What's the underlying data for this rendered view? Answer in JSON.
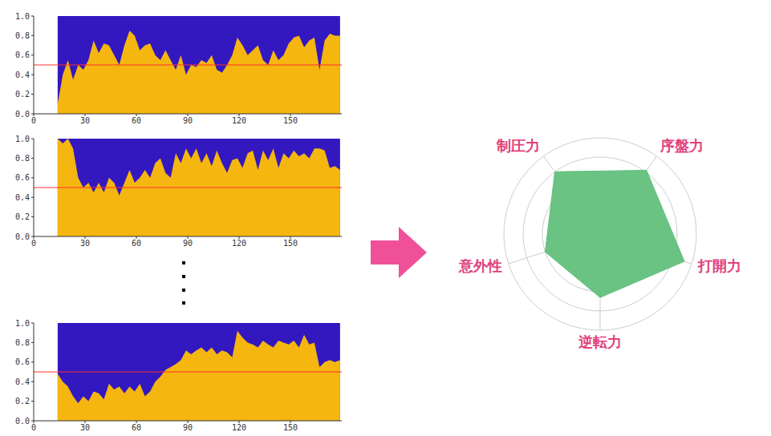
{
  "chart_data": [
    {
      "type": "area",
      "x": [
        14,
        17,
        20,
        23,
        26,
        29,
        32,
        35,
        38,
        41,
        44,
        47,
        50,
        53,
        56,
        59,
        62,
        65,
        68,
        71,
        74,
        77,
        80,
        83,
        86,
        89,
        92,
        95,
        98,
        101,
        104,
        107,
        110,
        113,
        116,
        119,
        122,
        125,
        128,
        131,
        134,
        137,
        140,
        143,
        146,
        149,
        152,
        155,
        158,
        161,
        164,
        167,
        170,
        173,
        176,
        179
      ],
      "values": [
        0.1,
        0.4,
        0.55,
        0.35,
        0.5,
        0.45,
        0.55,
        0.75,
        0.62,
        0.72,
        0.7,
        0.6,
        0.5,
        0.7,
        0.85,
        0.8,
        0.65,
        0.7,
        0.72,
        0.6,
        0.55,
        0.65,
        0.55,
        0.45,
        0.6,
        0.4,
        0.5,
        0.48,
        0.55,
        0.52,
        0.6,
        0.45,
        0.42,
        0.5,
        0.6,
        0.78,
        0.7,
        0.6,
        0.65,
        0.7,
        0.55,
        0.5,
        0.65,
        0.55,
        0.6,
        0.72,
        0.78,
        0.8,
        0.68,
        0.75,
        0.78,
        0.45,
        0.75,
        0.82,
        0.8,
        0.8
      ],
      "color": "#f5b60f",
      "reference_line": 0.5,
      "xlim": [
        0,
        180
      ],
      "xticks": [
        0,
        30,
        60,
        90,
        120,
        150
      ],
      "ylim": [
        0,
        1
      ],
      "yticks": [
        {
          "value": 0,
          "label": "0.0"
        },
        0.2,
        0.4,
        0.6,
        0.8,
        {
          "value": 1,
          "label": "1.0"
        }
      ]
    },
    {
      "type": "area",
      "x": [
        14,
        17,
        20,
        23,
        26,
        29,
        32,
        35,
        38,
        41,
        44,
        47,
        50,
        53,
        56,
        59,
        62,
        65,
        68,
        71,
        74,
        77,
        80,
        83,
        86,
        89,
        92,
        95,
        98,
        101,
        104,
        107,
        110,
        113,
        116,
        119,
        122,
        125,
        128,
        131,
        134,
        137,
        140,
        143,
        146,
        149,
        152,
        155,
        158,
        161,
        164,
        167,
        170,
        173,
        176,
        179
      ],
      "values": [
        1,
        0.95,
        1,
        0.9,
        0.6,
        0.5,
        0.55,
        0.45,
        0.55,
        0.45,
        0.6,
        0.55,
        0.42,
        0.55,
        0.68,
        0.55,
        0.6,
        0.68,
        0.6,
        0.75,
        0.8,
        0.65,
        0.6,
        0.85,
        0.75,
        0.9,
        0.8,
        0.9,
        0.75,
        0.85,
        0.72,
        0.88,
        0.75,
        0.65,
        0.78,
        0.8,
        0.7,
        0.85,
        0.88,
        0.68,
        0.88,
        0.78,
        0.9,
        0.7,
        0.85,
        0.8,
        0.88,
        0.82,
        0.85,
        0.8,
        0.9,
        0.9,
        0.88,
        0.7,
        0.72,
        0.68
      ],
      "color": "#f5b60f",
      "reference_line": 0.5,
      "xlim": [
        0,
        180
      ],
      "xticks": [
        0,
        30,
        60,
        90,
        120,
        150
      ],
      "ylim": [
        0,
        1
      ],
      "yticks": [
        {
          "value": 0,
          "label": "0.0"
        },
        0.2,
        0.4,
        0.6,
        0.8,
        {
          "value": 1,
          "label": "1.0"
        }
      ]
    },
    {
      "type": "area",
      "x": [
        14,
        17,
        20,
        23,
        26,
        29,
        32,
        35,
        38,
        41,
        44,
        47,
        50,
        53,
        56,
        59,
        62,
        65,
        68,
        71,
        74,
        77,
        80,
        83,
        86,
        89,
        92,
        95,
        98,
        101,
        104,
        107,
        110,
        113,
        116,
        119,
        122,
        125,
        128,
        131,
        134,
        137,
        140,
        143,
        146,
        149,
        152,
        155,
        158,
        161,
        164,
        167,
        170,
        173,
        176,
        179
      ],
      "values": [
        0.48,
        0.4,
        0.35,
        0.25,
        0.18,
        0.25,
        0.2,
        0.3,
        0.28,
        0.22,
        0.38,
        0.32,
        0.35,
        0.28,
        0.35,
        0.3,
        0.38,
        0.25,
        0.3,
        0.4,
        0.45,
        0.52,
        0.55,
        0.58,
        0.62,
        0.72,
        0.68,
        0.72,
        0.75,
        0.7,
        0.75,
        0.68,
        0.72,
        0.7,
        0.65,
        0.92,
        0.85,
        0.8,
        0.78,
        0.75,
        0.82,
        0.78,
        0.75,
        0.82,
        0.8,
        0.78,
        0.82,
        0.75,
        0.88,
        0.78,
        0.8,
        0.55,
        0.6,
        0.62,
        0.6,
        0.62
      ],
      "color": "#f5b60f",
      "reference_line": 0.5,
      "xlim": [
        0,
        180
      ],
      "xticks": [
        0,
        30,
        60,
        90,
        120,
        150
      ],
      "ylim": [
        0,
        1
      ],
      "yticks": [
        {
          "value": 0,
          "label": "0.0"
        },
        0.2,
        0.4,
        0.6,
        0.8,
        {
          "value": 1,
          "label": "1.0"
        }
      ]
    },
    {
      "type": "radar",
      "categories": [
        "制圧力",
        "序盤力",
        "打開力",
        "逆転力",
        "意外性"
      ],
      "values": [
        4,
        4.1,
        4.6,
        3.3,
        3
      ],
      "color": "#62c07c",
      "ylim": [
        0,
        5
      ],
      "yticks": [
        1,
        2,
        3,
        4,
        5
      ],
      "grid": true,
      "tick_labels": "x"
    }
  ]
}
